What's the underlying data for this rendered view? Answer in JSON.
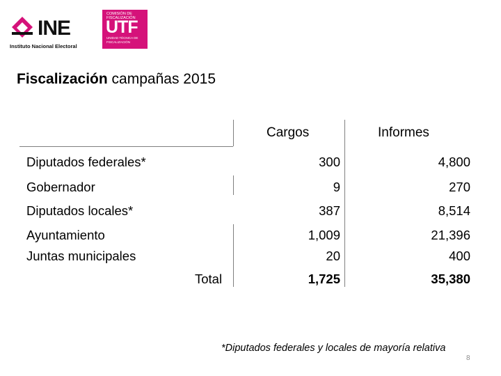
{
  "logos": {
    "ine_word": "INE",
    "ine_subtitle": "Instituto Nacional Electoral",
    "utf_top": "Comisión de Fiscalización",
    "utf_word": "UTF",
    "utf_bottom": "Unidad Técnica de Fiscalización",
    "ine_color": "#d5127a",
    "utf_color": "#d5127a"
  },
  "title": {
    "bold": "Fiscalización",
    "rest": " campañas 2015"
  },
  "table": {
    "headers": [
      "Cargos",
      "Informes"
    ],
    "rows": [
      {
        "label": "Diputados federales*",
        "cargos": "300",
        "informes": "4,800"
      },
      {
        "label": "Gobernador",
        "cargos": "9",
        "informes": "270"
      },
      {
        "label": "Diputados locales*",
        "cargos": "387",
        "informes": "8,514"
      },
      {
        "label": "Ayuntamiento",
        "cargos": "1,009",
        "informes": "21,396"
      },
      {
        "label": "Juntas municipales",
        "cargos": "20",
        "informes": "400"
      }
    ],
    "total": {
      "label": "Total",
      "cargos": "1,725",
      "informes": "35,380"
    }
  },
  "footnote": "*Diputados federales y locales de mayoría relativa",
  "page_number": "8"
}
